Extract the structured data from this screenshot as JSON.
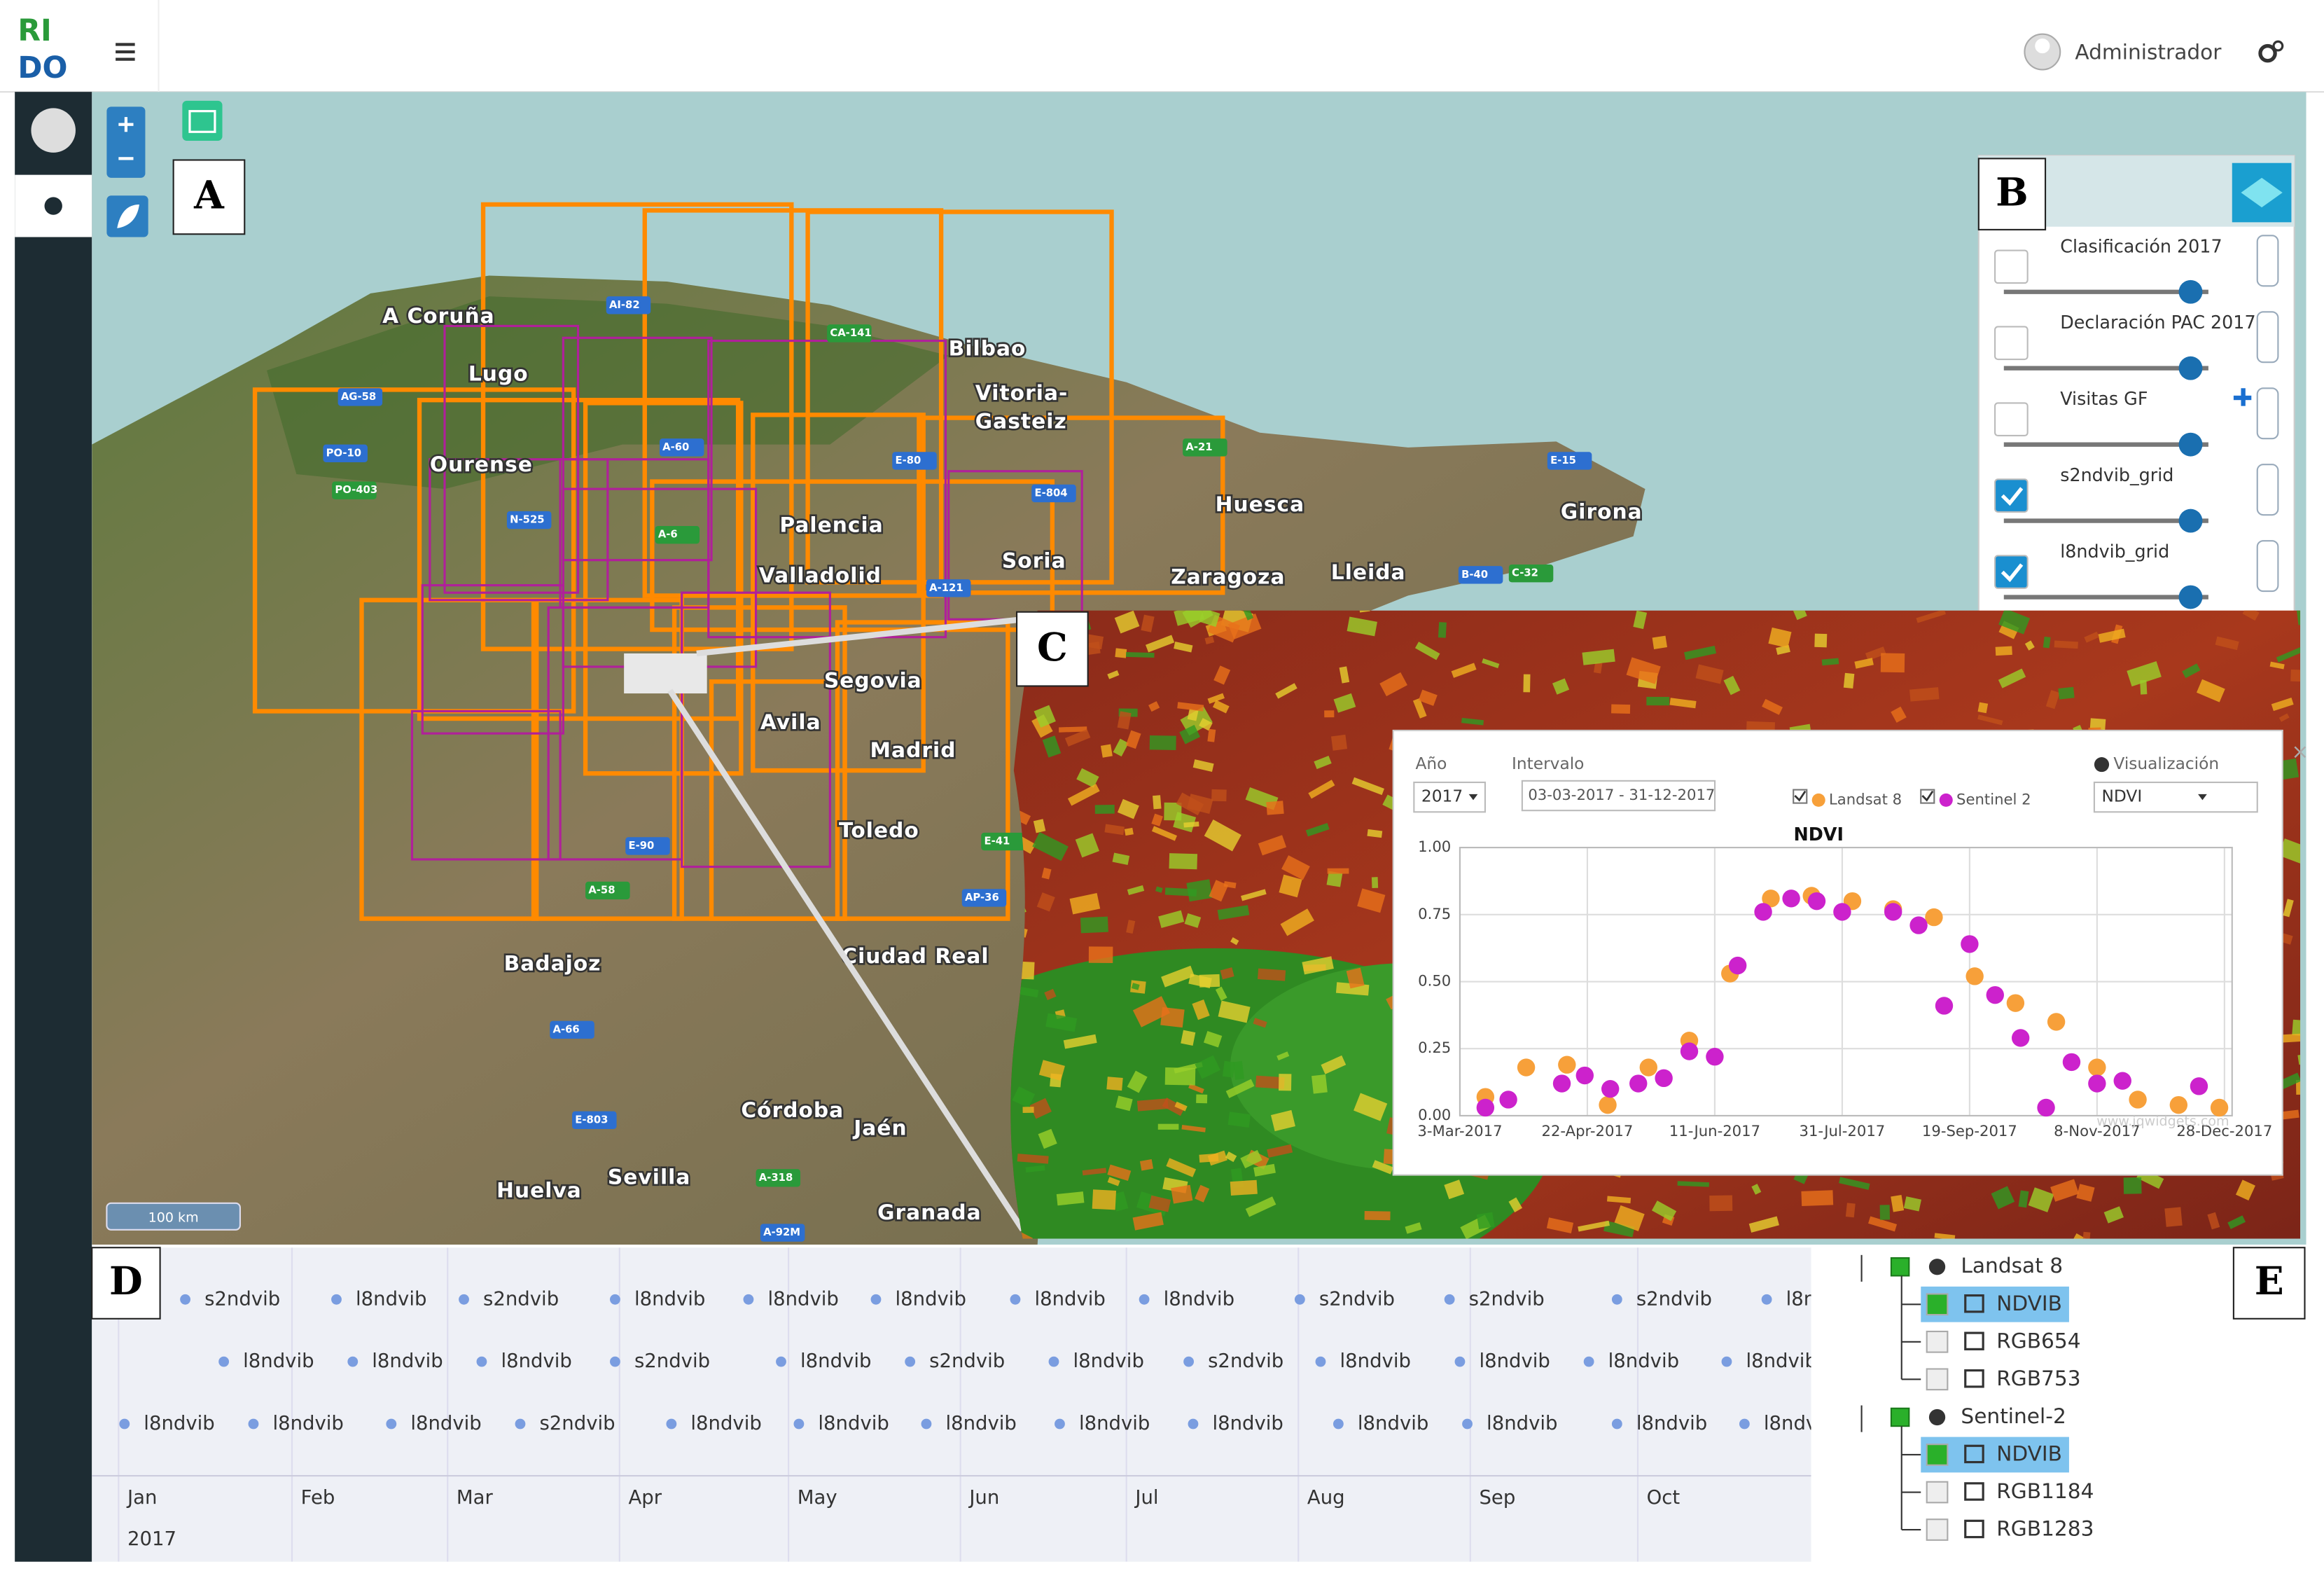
{
  "header": {
    "logo": [
      "RI",
      "DO"
    ],
    "user": "Administrador"
  },
  "panel_labels": [
    "A",
    "B",
    "C",
    "D",
    "E"
  ],
  "map": {
    "places": [
      "A Coruña",
      "Lugo",
      "Ourense",
      "Bilbao",
      "Vitoria-",
      "Gasteiz",
      "Palencia",
      "Valladolid",
      "Soria",
      "Huesca",
      "Girona",
      "Zaragoza",
      "Lleida",
      "Segovia",
      "Avila",
      "Madrid",
      "Toledo",
      "Badajoz",
      "Ciudad Real",
      "Córdoba",
      "Jaén",
      "Huelva",
      "Sevilla",
      "Granada"
    ],
    "roads": [
      "AI-82",
      "CA-141",
      "AG-58",
      "PO-10",
      "PO-403",
      "N-525",
      "A-60",
      "A-6",
      "E-80",
      "E-804",
      "A-21",
      "E-15",
      "B-40",
      "C-32",
      "A-121",
      "E-90",
      "A-58",
      "A-66",
      "E-803",
      "A-318",
      "A-92M",
      "AP-36",
      "E-41"
    ],
    "scale_bar": "100 km"
  },
  "layers": [
    {
      "name": "Clasificación 2017",
      "checked": false
    },
    {
      "name": "Declaración PAC 2017",
      "checked": false
    },
    {
      "name": "Visitas GF",
      "checked": false
    },
    {
      "name": "s2ndvib_grid",
      "checked": true
    },
    {
      "name": "l8ndvib_grid",
      "checked": true
    }
  ],
  "chart": {
    "type": "scatter",
    "title": "NDVI",
    "controls": {
      "year_label": "Año",
      "year": "2017",
      "interval_label": "Intervalo",
      "interval": "03-03-2017 - 31-12-2017",
      "view_label": "Visualización",
      "view": "NDVI"
    },
    "xlim": [
      "2017-03-03",
      "2017-12-31"
    ],
    "xticks": [
      {
        "value": "2017-03-03",
        "label": "3-Mar-2017"
      },
      {
        "value": "2017-04-22",
        "label": "22-Apr-2017"
      },
      {
        "value": "2017-06-11",
        "label": "11-Jun-2017"
      },
      {
        "value": "2017-07-31",
        "label": "31-Jul-2017"
      },
      {
        "value": "2017-09-19",
        "label": "19-Sep-2017"
      },
      {
        "value": "2017-11-08",
        "label": "8-Nov-2017"
      },
      {
        "value": "2017-12-28",
        "label": "28-Dec-2017"
      }
    ],
    "ylim": [
      0,
      1
    ],
    "yticks": [
      {
        "value": 0,
        "label": "0.00"
      },
      {
        "value": 0.25,
        "label": "0.25"
      },
      {
        "value": 0.5,
        "label": "0.50"
      },
      {
        "value": 0.75,
        "label": "0.75"
      },
      {
        "value": 1,
        "label": "1.00"
      }
    ],
    "grid": true,
    "series": [
      {
        "name": "Landsat 8",
        "color": "#f7a03a",
        "checked": true,
        "x": [
          "2017-03-13",
          "2017-03-29",
          "2017-04-14",
          "2017-04-30",
          "2017-05-16",
          "2017-06-01",
          "2017-06-17",
          "2017-07-03",
          "2017-07-19",
          "2017-08-04",
          "2017-08-20",
          "2017-09-05",
          "2017-09-21",
          "2017-10-07",
          "2017-10-23",
          "2017-11-08",
          "2017-11-24",
          "2017-12-10",
          "2017-12-26"
        ],
        "values": [
          0.07,
          0.18,
          0.19,
          0.04,
          0.18,
          0.28,
          0.53,
          0.81,
          0.82,
          0.8,
          0.77,
          0.74,
          0.52,
          0.42,
          0.35,
          0.18,
          0.06,
          0.04,
          0.03
        ]
      },
      {
        "name": "Sentinel 2",
        "color": "#cc22cc",
        "checked": true,
        "x": [
          "2017-03-13",
          "2017-03-22",
          "2017-04-12",
          "2017-04-21",
          "2017-05-01",
          "2017-05-12",
          "2017-05-22",
          "2017-06-01",
          "2017-06-11",
          "2017-06-20",
          "2017-06-30",
          "2017-07-11",
          "2017-07-21",
          "2017-07-31",
          "2017-08-20",
          "2017-08-30",
          "2017-09-09",
          "2017-09-19",
          "2017-09-29",
          "2017-10-09",
          "2017-10-19",
          "2017-10-29",
          "2017-11-08",
          "2017-11-18",
          "2017-12-18"
        ],
        "values": [
          0.03,
          0.06,
          0.12,
          0.15,
          0.1,
          0.12,
          0.14,
          0.24,
          0.22,
          0.56,
          0.76,
          0.81,
          0.8,
          0.76,
          0.76,
          0.71,
          0.41,
          0.64,
          0.45,
          0.29,
          0.03,
          0.2,
          0.12,
          0.13,
          0.11
        ]
      }
    ],
    "watermark": "www.jqwidgets.com"
  },
  "timeline": {
    "rows": [
      [
        "s2ndvib",
        "l8ndvib",
        "s2ndvib",
        "l8ndvib",
        "l8ndvib",
        "l8ndvib",
        "l8ndvib",
        "l8ndvib",
        "s2ndvib",
        "s2ndvib",
        "s2ndvib",
        "l8ndvib"
      ],
      [
        "l8ndvib",
        "l8ndvib",
        "l8ndvib",
        "s2ndvib",
        "l8ndvib",
        "s2ndvib",
        "l8ndvib",
        "s2ndvib",
        "l8ndvib",
        "l8ndvib",
        "l8ndvib",
        "l8ndvib"
      ],
      [
        "l8ndvib",
        "l8ndvib",
        "l8ndvib",
        "s2ndvib",
        "l8ndvib",
        "l8ndvib",
        "l8ndvib",
        "l8ndvib",
        "l8ndvib",
        "l8ndvib",
        "l8ndvib",
        "l8ndvib",
        "l8ndvib"
      ]
    ],
    "months": [
      "Jan",
      "Feb",
      "Mar",
      "Apr",
      "May",
      "Jun",
      "Jul",
      "Aug",
      "Sep",
      "Oct"
    ],
    "year": "2017"
  },
  "tree": [
    {
      "name": "Landsat 8",
      "children": [
        {
          "name": "NDVIB",
          "checked": true
        },
        {
          "name": "RGB654",
          "checked": false
        },
        {
          "name": "RGB753",
          "checked": false
        }
      ]
    },
    {
      "name": "Sentinel-2",
      "children": [
        {
          "name": "NDVIB",
          "checked": true
        },
        {
          "name": "RGB1184",
          "checked": false
        },
        {
          "name": "RGB1283",
          "checked": false
        }
      ]
    }
  ]
}
